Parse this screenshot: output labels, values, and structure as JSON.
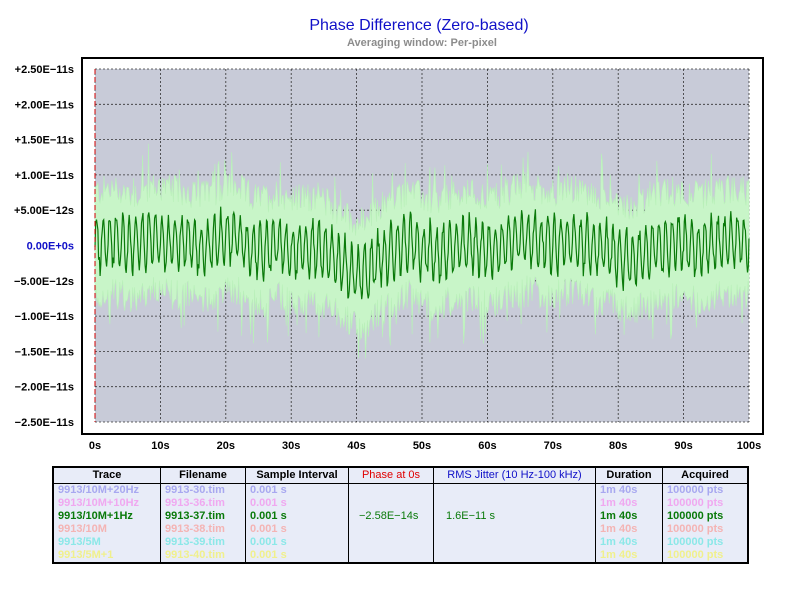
{
  "chart_data": {
    "type": "line",
    "title": "Phase Difference (Zero-based)",
    "subtitle": "Averaging window: Per-pixel",
    "x_tick_labels": [
      "0s",
      "10s",
      "20s",
      "30s",
      "40s",
      "50s",
      "60s",
      "70s",
      "80s",
      "90s",
      "100s"
    ],
    "y_tick_labels": [
      "+2.50E−11s",
      "+2.00E−11s",
      "+1.50E−11s",
      "+1.00E−11s",
      "+5.00E−12s",
      "0.00E+0s",
      "−5.00E−12s",
      "−1.00E−11s",
      "−1.50E−11s",
      "−2.00E−11s",
      "−2.50E−11s"
    ],
    "xlim": [
      0,
      100
    ],
    "ylim": [
      -2.5e-11,
      2.5e-11
    ],
    "grid": true,
    "colors": {
      "plot_bg": "#c8cbd8",
      "envelope": "#c8f5c8",
      "trace": "#0a7a0a",
      "zero_label": "#1010c8",
      "marker": "#d00000"
    },
    "series": [
      {
        "name": "9913/10M+1Hz",
        "samples_x": [
          0,
          2,
          4,
          6,
          8,
          10,
          12,
          14,
          16,
          18,
          20,
          22,
          24,
          26,
          28,
          30,
          32,
          34,
          36,
          38,
          40,
          42,
          44,
          46,
          48,
          50,
          52,
          54,
          56,
          58,
          60,
          62,
          64,
          66,
          68,
          70,
          72,
          74,
          76,
          78,
          80,
          82,
          84,
          86,
          88,
          90,
          92,
          94,
          96,
          98,
          100
        ],
        "mean": [
          2e-13,
          6e-13,
          4e-13,
          -2e-13,
          8e-13,
          9e-13,
          5e-13,
          3e-13,
          -4e-13,
          2e-13,
          1.2e-12,
          8e-13,
          -5e-13,
          -8e-13,
          2e-13,
          -1e-12,
          -6e-13,
          -4e-13,
          -1.6e-12,
          -2.8e-12,
          -4.3e-12,
          -3.5e-12,
          -1.5e-12,
          -8e-13,
          5e-13,
          -5e-13,
          -1.4e-12,
          -6e-13,
          -3e-13,
          2e-13,
          -8e-13,
          -2e-13,
          6e-13,
          1.2e-12,
          6e-13,
          2e-13,
          9e-13,
          3e-13,
          -3e-13,
          -6e-13,
          -1.2e-12,
          -2e-12,
          -1.2e-12,
          -4e-13,
          4e-13,
          3e-13,
          -3e-13,
          1e-13,
          4e-13,
          8e-13,
          2e-13
        ],
        "amplitude": 4.2e-12,
        "envelope_amplitude": 9.5e-12
      }
    ],
    "marker_x": 0
  },
  "table": {
    "headers": [
      "Trace",
      "Filename",
      "Sample Interval",
      "Phase at 0s",
      "RMS Jitter (10 Hz-100 kHz)",
      "Duration",
      "Acquired"
    ],
    "header_colors": [
      "#000000",
      "#000000",
      "#000000",
      "#e00000",
      "#1010c8",
      "#000000",
      "#000000"
    ],
    "rows": [
      {
        "trace": "9913/10M+20Hz",
        "file": "9913-30.tim",
        "interval": "0.001 s",
        "phase": "",
        "jitter": "",
        "duration": "1m 40s",
        "acquired": "100000 pts",
        "color": "#a8a8f0"
      },
      {
        "trace": "9913/10M+10Hz",
        "file": "9913-36.tim",
        "interval": "0.001 s",
        "phase": "",
        "jitter": "",
        "duration": "1m 40s",
        "acquired": "100000 pts",
        "color": "#f0a8f0"
      },
      {
        "trace": "9913/10M+1Hz",
        "file": "9913-37.tim",
        "interval": "0.001 s",
        "phase": "−2.58E−14s",
        "jitter": "1.6E−11 s",
        "duration": "1m 40s",
        "acquired": "100000 pts",
        "color": "#0a7a0a"
      },
      {
        "trace": "9913/10M",
        "file": "9913-38.tim",
        "interval": "0.001 s",
        "phase": "",
        "jitter": "",
        "duration": "1m 40s",
        "acquired": "100000 pts",
        "color": "#f4b4b4"
      },
      {
        "trace": "9913/5M",
        "file": "9913-39.tim",
        "interval": "0.001 s",
        "phase": "",
        "jitter": "",
        "duration": "1m 40s",
        "acquired": "100000 pts",
        "color": "#8ce8e8"
      },
      {
        "trace": "9913/5M+1",
        "file": "9913-40.tim",
        "interval": "0.001 s",
        "phase": "",
        "jitter": "",
        "duration": "1m 40s",
        "acquired": "100000 pts",
        "color": "#f0f08c"
      }
    ]
  }
}
